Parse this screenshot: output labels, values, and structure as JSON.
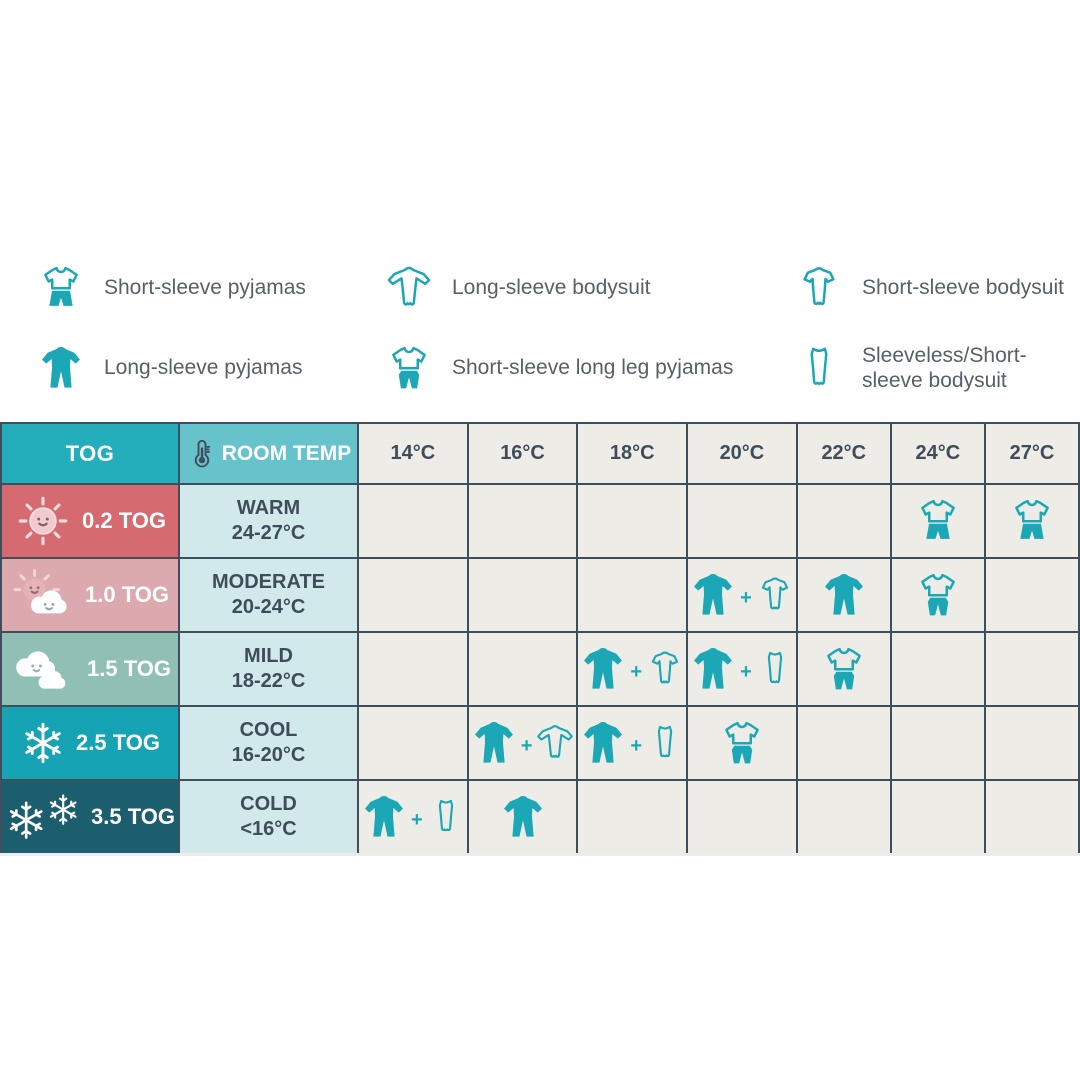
{
  "colors": {
    "accent_teal": "#1BA7B5",
    "header_tog_bg": "#24ADBA",
    "header_room_bg": "#66C3CC",
    "cell_bg": "#EDECE7",
    "room_cell_bg": "#D2E9EC",
    "border": "#3E4E5A",
    "dark_text": "#3E4D59",
    "legend_text": "#566069"
  },
  "legend": {
    "columns": [
      {
        "items": [
          {
            "icon": "short-sleeve-pyjamas",
            "label": "Short-sleeve pyjamas"
          },
          {
            "icon": "long-sleeve-pyjamas",
            "label": "Long-sleeve pyjamas"
          }
        ]
      },
      {
        "items": [
          {
            "icon": "long-sleeve-bodysuit",
            "label": "Long-sleeve bodysuit"
          },
          {
            "icon": "short-sleeve-long-leg-pyjamas",
            "label": "Short-sleeve long leg pyjamas"
          }
        ]
      },
      {
        "items": [
          {
            "icon": "short-sleeve-bodysuit",
            "label": "Short-sleeve bodysuit"
          },
          {
            "icon": "sleeveless-bodysuit",
            "label": "Sleeveless/Short-sleeve bodysuit"
          }
        ]
      }
    ]
  },
  "table": {
    "plus": "+",
    "header": {
      "tog_label": "TOG",
      "room_temp_label": "ROOM TEMP",
      "room_temp_icon": "thermometer",
      "temps": [
        "14°C",
        "16°C",
        "18°C",
        "20°C",
        "22°C",
        "24°C",
        "27°C"
      ]
    },
    "rows": [
      {
        "tog": "0.2 TOG",
        "weather": "sun",
        "bg": "#D56A70",
        "temp_label": "WARM",
        "temp_range": "24-27°C",
        "cells": [
          [],
          [],
          [],
          [],
          [],
          [
            "short-sleeve-pyjamas"
          ],
          [
            "short-sleeve-pyjamas"
          ]
        ]
      },
      {
        "tog": "1.0 TOG",
        "weather": "sun-cloud",
        "bg": "#DBA9AE",
        "temp_label": "MODERATE",
        "temp_range": "20-24°C",
        "cells": [
          [],
          [],
          [],
          [
            "long-sleeve-pyjamas",
            "short-sleeve-bodysuit"
          ],
          [
            "long-sleeve-pyjamas"
          ],
          [
            "short-sleeve-long-leg-pyjamas"
          ],
          []
        ]
      },
      {
        "tog": "1.5 TOG",
        "weather": "clouds",
        "bg": "#90C0B5",
        "temp_label": "MILD",
        "temp_range": "18-22°C",
        "cells": [
          [],
          [],
          [
            "long-sleeve-pyjamas",
            "short-sleeve-bodysuit"
          ],
          [
            "long-sleeve-pyjamas",
            "sleeveless-bodysuit"
          ],
          [
            "short-sleeve-long-leg-pyjamas"
          ],
          [],
          []
        ]
      },
      {
        "tog": "2.5 TOG",
        "weather": "snowflake",
        "bg": "#16A4B5",
        "temp_label": "COOL",
        "temp_range": "16-20°C",
        "cells": [
          [],
          [
            "long-sleeve-pyjamas",
            "long-sleeve-bodysuit"
          ],
          [
            "long-sleeve-pyjamas",
            "sleeveless-bodysuit"
          ],
          [
            "short-sleeve-long-leg-pyjamas"
          ],
          [],
          [],
          []
        ]
      },
      {
        "tog": "3.5 TOG",
        "weather": "double-snowflake",
        "bg": "#1D5E6E",
        "temp_label": "COLD",
        "temp_range": "<16°C",
        "cells": [
          [
            "long-sleeve-pyjamas",
            "sleeveless-bodysuit"
          ],
          [
            "long-sleeve-pyjamas"
          ],
          [],
          [],
          [],
          [],
          []
        ]
      }
    ]
  }
}
